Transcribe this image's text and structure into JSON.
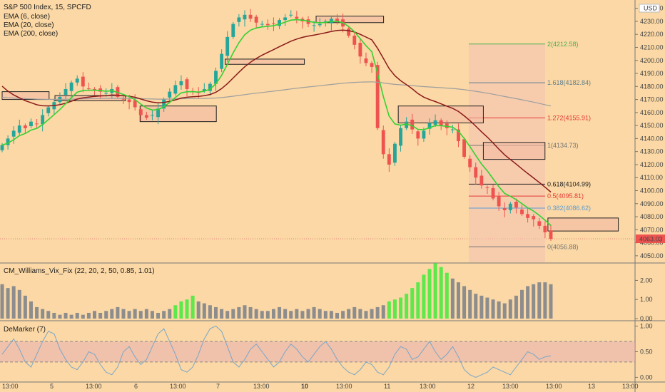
{
  "header": {
    "symbol_line": "S&P 500 Index, 15, SPCFD",
    "currency": "USD",
    "studies": [
      "EMA (6, close)",
      "EMA (20, close)",
      "EMA (200, close)"
    ]
  },
  "colors": {
    "background": "#fbd8a5",
    "up": "#26a69a",
    "down": "#ef5350",
    "ema6": "#34d134",
    "ema20": "#8b1a1a",
    "ema200": "#9e9e9e",
    "vix_green": "#5ee84b",
    "vix_gray": "#8d8d8d",
    "demarker": "#7aa6c9"
  },
  "chart_data": [
    {
      "type": "candlestick",
      "title": "S&P 500 Index, 15, SPCFD",
      "ylim": [
        4045,
        4242
      ],
      "y_ticks": [
        4050,
        4060,
        4070,
        4080,
        4090,
        4100,
        4110,
        4120,
        4130,
        4140,
        4150,
        4160,
        4170,
        4180,
        4190,
        4200,
        4210,
        4220,
        4230,
        4240
      ],
      "last_price": "4063.03",
      "x_tick_labels": [
        "13:00",
        "5",
        "13:00",
        "6",
        "13:00",
        "7",
        "13:00",
        "10",
        "13:00",
        "11",
        "13:00",
        "12",
        "13:00",
        "13:00",
        "13",
        "13:00"
      ],
      "close_path": [
        4135,
        4140,
        4146,
        4150,
        4148,
        4153,
        4151,
        4158,
        4164,
        4168,
        4172,
        4178,
        4183,
        4186,
        4180,
        4178,
        4177,
        4176,
        4175,
        4178,
        4172,
        4170,
        4168,
        4164,
        4158,
        4156,
        4158,
        4163,
        4170,
        4176,
        4181,
        4184,
        4178,
        4176,
        4175,
        4178,
        4182,
        4192,
        4205,
        4218,
        4228,
        4233,
        4235,
        4232,
        4229,
        4228,
        4227,
        4228,
        4231,
        4233,
        4235,
        4232,
        4230,
        4228,
        4227,
        4228,
        4230,
        4232,
        4230,
        4226,
        4219,
        4212,
        4203,
        4198,
        4195,
        4148,
        4128,
        4120,
        4136,
        4148,
        4153,
        4147,
        4140,
        4146,
        4152,
        4154,
        4150,
        4148,
        4147,
        4138,
        4126,
        4118,
        4110,
        4104,
        4102,
        4094,
        4088,
        4085,
        4090,
        4087,
        4082,
        4079,
        4078,
        4073,
        4068,
        4063
      ],
      "fib_levels": [
        {
          "label": "2(4212.58)",
          "value": 4212.58,
          "color": "#4caf50"
        },
        {
          "label": "1.618(4182.84)",
          "value": 4182.84,
          "color": "#607d8b"
        },
        {
          "label": "1.272(4155.91)",
          "value": 4155.91,
          "color": "#e53935"
        },
        {
          "label": "1(4134.73)",
          "value": 4134.73,
          "color": "#757575"
        },
        {
          "label": "0.618(4104.99)",
          "value": 4104.99,
          "color": "#212121"
        },
        {
          "label": "0.5(4095.81)",
          "value": 4095.81,
          "color": "#e53935"
        },
        {
          "label": "0.382(4086.62)",
          "value": 4086.62,
          "color": "#5b9bd5"
        },
        {
          "label": "0(4056.88)",
          "value": 4056.88,
          "color": "#757575"
        }
      ]
    },
    {
      "type": "bar",
      "title": "CM_Williams_Vix_Fix (22, 20, 2, 50, 0.85, 1.01)",
      "ylim": [
        0,
        2.8
      ],
      "y_ticks": [
        "0.00",
        "1.00",
        "2.00"
      ],
      "values": [
        1.8,
        1.6,
        1.7,
        1.5,
        1.2,
        0.9,
        0.6,
        0.5,
        0.4,
        0.3,
        0.2,
        0.3,
        0.2,
        0.3,
        0.2,
        0.3,
        0.4,
        0.3,
        0.4,
        0.5,
        0.6,
        0.5,
        0.4,
        0.5,
        0.4,
        0.5,
        0.4,
        0.3,
        0.4,
        0.5,
        0.7,
        0.9,
        1.0,
        1.2,
        0.9,
        0.8,
        0.7,
        0.6,
        0.5,
        0.4,
        0.5,
        0.6,
        0.7,
        0.6,
        0.5,
        0.4,
        0.4,
        0.5,
        0.6,
        0.5,
        0.4,
        0.5,
        0.4,
        0.5,
        0.6,
        0.5,
        0.4,
        0.4,
        0.3,
        0.4,
        0.5,
        0.6,
        0.5,
        0.4,
        0.5,
        0.6,
        0.7,
        0.9,
        1.0,
        1.1,
        1.3,
        1.6,
        1.9,
        2.3,
        2.6,
        2.9,
        2.7,
        2.4,
        2.1,
        1.9,
        1.7,
        1.5,
        1.3,
        1.2,
        1.1,
        1.0,
        0.9,
        0.8,
        1.0,
        1.2,
        1.5,
        1.7,
        1.8,
        1.9,
        1.9,
        1.8
      ],
      "highlight": [
        0,
        0,
        0,
        0,
        0,
        0,
        0,
        0,
        0,
        0,
        0,
        0,
        0,
        0,
        0,
        0,
        0,
        0,
        0,
        0,
        0,
        0,
        0,
        0,
        0,
        0,
        0,
        0,
        0,
        0,
        1,
        1,
        1,
        1,
        0,
        0,
        0,
        0,
        0,
        0,
        0,
        0,
        0,
        0,
        0,
        0,
        0,
        0,
        0,
        0,
        0,
        0,
        0,
        0,
        0,
        0,
        0,
        0,
        0,
        0,
        0,
        0,
        0,
        0,
        0,
        0,
        0,
        1,
        1,
        1,
        1,
        1,
        1,
        1,
        1,
        1,
        1,
        1,
        0,
        0,
        0,
        0,
        0,
        0,
        0,
        0,
        0,
        0,
        0,
        0,
        0,
        0,
        0,
        0,
        0,
        0
      ]
    },
    {
      "type": "line",
      "title": "DeMarker (7)",
      "ylim": [
        -0.05,
        1.05
      ],
      "y_ticks": [
        "0.00",
        "0.50",
        "1.00"
      ],
      "band": [
        0.3,
        0.7
      ],
      "values": [
        0.45,
        0.6,
        0.75,
        0.55,
        0.3,
        0.2,
        0.45,
        0.7,
        0.9,
        0.85,
        0.55,
        0.35,
        0.2,
        0.15,
        0.3,
        0.5,
        0.45,
        0.25,
        0.1,
        0.05,
        0.2,
        0.5,
        0.6,
        0.4,
        0.25,
        0.35,
        0.6,
        0.85,
        0.95,
        0.7,
        0.45,
        0.15,
        0.1,
        0.2,
        0.45,
        0.75,
        0.95,
        1.0,
        0.9,
        0.6,
        0.3,
        0.2,
        0.35,
        0.55,
        0.65,
        0.5,
        0.35,
        0.2,
        0.3,
        0.5,
        0.65,
        0.55,
        0.4,
        0.3,
        0.45,
        0.6,
        0.7,
        0.55,
        0.35,
        0.2,
        0.1,
        0.05,
        0.15,
        0.3,
        0.25,
        0.1,
        0.05,
        0.2,
        0.45,
        0.6,
        0.55,
        0.35,
        0.4,
        0.55,
        0.7,
        0.5,
        0.35,
        0.45,
        0.6,
        0.4,
        0.15,
        0.05,
        0.0,
        0.05,
        0.1,
        0.2,
        0.15,
        0.1,
        0.05,
        0.2,
        0.35,
        0.5,
        0.45,
        0.35,
        0.4,
        0.42
      ]
    }
  ]
}
